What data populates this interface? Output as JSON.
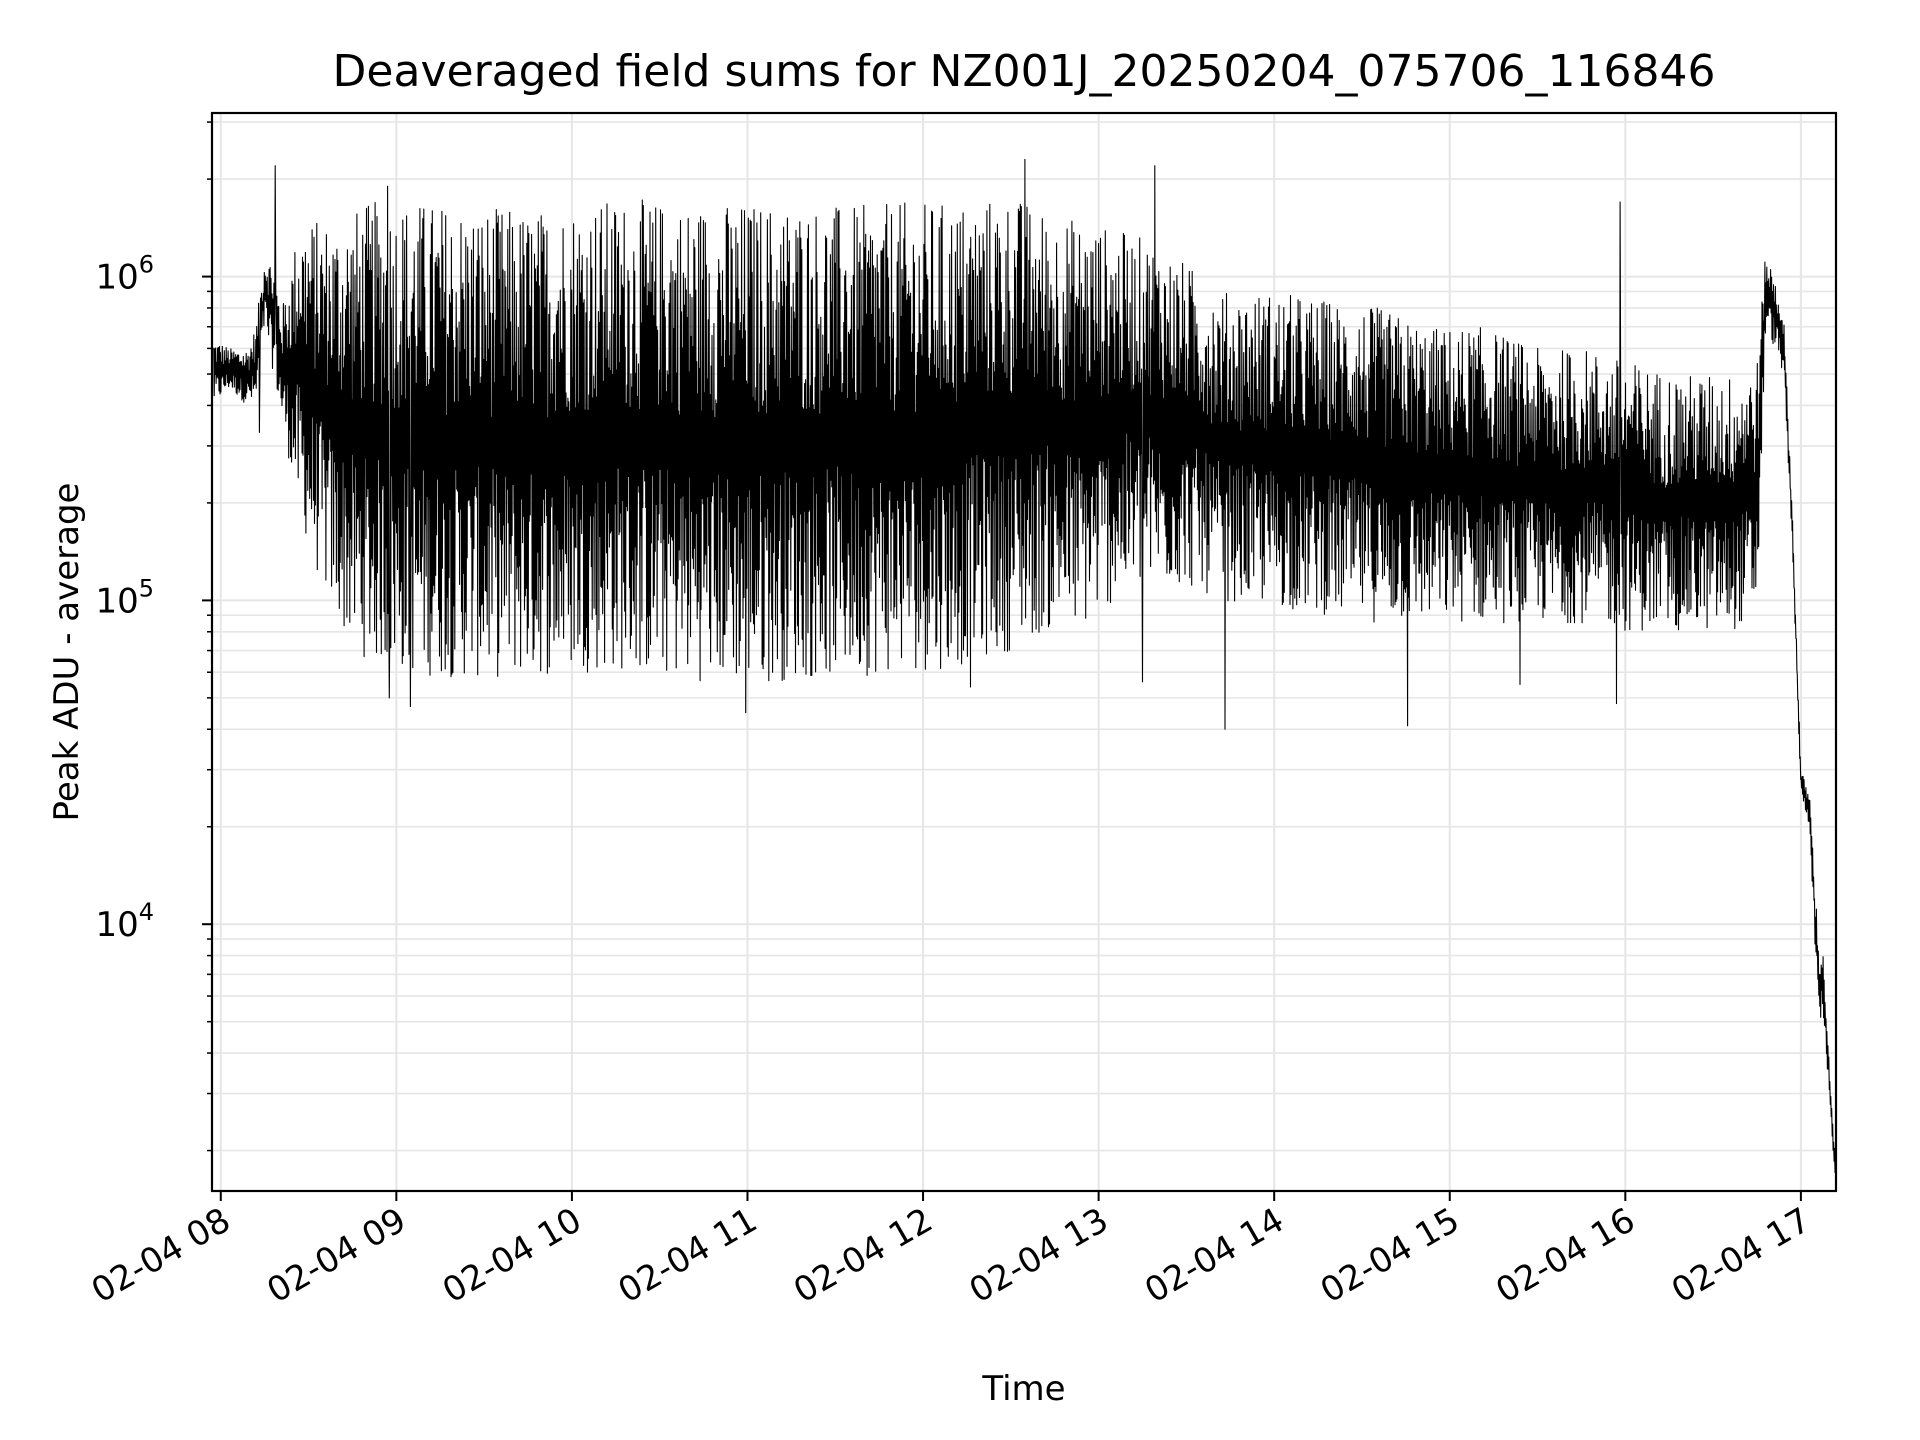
{
  "chart_data": {
    "type": "line",
    "title": "Deaveraged field sums for NZ001J_20250204_075706_116846",
    "xlabel": "Time",
    "ylabel": "Peak ADU - average",
    "yscale": "log",
    "xlim": [
      "02-04 07:57",
      "02-04 17:12"
    ],
    "ylim": [
      1500,
      3200000
    ],
    "grid": true,
    "line_color": "#000000",
    "x_ticks": [
      {
        "label": "02-04 08",
        "value": 8
      },
      {
        "label": "02-04 09",
        "value": 9
      },
      {
        "label": "02-04 10",
        "value": 10
      },
      {
        "label": "02-04 11",
        "value": 11
      },
      {
        "label": "02-04 12",
        "value": 12
      },
      {
        "label": "02-04 13",
        "value": 13
      },
      {
        "label": "02-04 14",
        "value": 14
      },
      {
        "label": "02-04 15",
        "value": 15
      },
      {
        "label": "02-04 16",
        "value": 16
      },
      {
        "label": "02-04 17",
        "value": 17
      }
    ],
    "y_ticks": [
      {
        "base": "10",
        "exp": "4",
        "value": 10000
      },
      {
        "base": "10",
        "exp": "5",
        "value": 100000
      },
      {
        "base": "10",
        "exp": "6",
        "value": 1000000
      }
    ],
    "envelope_hours": [
      7.96,
      8.05,
      8.15,
      8.2,
      8.25,
      8.3,
      8.35,
      8.45,
      8.55,
      8.65,
      8.75,
      8.85,
      9.0,
      9.2,
      9.5,
      9.8,
      10.0,
      10.3,
      10.6,
      11.0,
      11.3,
      11.6,
      11.9,
      12.2,
      12.5,
      12.7,
      12.9,
      13.1,
      13.3,
      13.5,
      13.7,
      14.0,
      14.3,
      14.6,
      14.9,
      15.2,
      15.5,
      15.8,
      16.0,
      16.3,
      16.6,
      16.75,
      16.8,
      16.85,
      16.9,
      16.95,
      17.0,
      17.05,
      17.1,
      17.13,
      17.17,
      17.2
    ],
    "envelope_high": [
      650000,
      600000,
      600000,
      700000,
      1200000,
      1100000,
      800000,
      1500000,
      1500000,
      1500000,
      1600000,
      1700000,
      1750000,
      1700000,
      1650000,
      1600000,
      1700000,
      1750000,
      1700000,
      1700000,
      1700000,
      1650000,
      1700000,
      1700000,
      1800000,
      1600000,
      1500000,
      1400000,
      1300000,
      1100000,
      900000,
      900000,
      850000,
      800000,
      700000,
      700000,
      600000,
      600000,
      550000,
      500000,
      500000,
      550000,
      1200000,
      1000000,
      800000,
      200000,
      30000,
      25000,
      9000,
      8000,
      3000,
      1800
    ],
    "envelope_low": [
      400000,
      450000,
      400000,
      400000,
      700000,
      500000,
      350000,
      180000,
      120000,
      90000,
      70000,
      65000,
      60000,
      58000,
      57000,
      58000,
      60000,
      60000,
      57000,
      55000,
      57000,
      58000,
      60000,
      62000,
      70000,
      80000,
      80000,
      100000,
      110000,
      110000,
      100000,
      95000,
      90000,
      85000,
      85000,
      85000,
      85000,
      85000,
      80000,
      80000,
      80000,
      90000,
      700000,
      600000,
      500000,
      150000,
      25000,
      20000,
      5000,
      5000,
      2500,
      1500
    ],
    "spikes": [
      {
        "x": 8.31,
        "y": 2200000
      },
      {
        "x": 8.22,
        "y": 330000
      },
      {
        "x": 8.95,
        "y": 1900000
      },
      {
        "x": 8.96,
        "y": 50000
      },
      {
        "x": 9.08,
        "y": 47000
      },
      {
        "x": 10.99,
        "y": 45000
      },
      {
        "x": 12.27,
        "y": 54000
      },
      {
        "x": 12.58,
        "y": 2300000
      },
      {
        "x": 13.32,
        "y": 2200000
      },
      {
        "x": 13.25,
        "y": 56000
      },
      {
        "x": 13.72,
        "y": 40000
      },
      {
        "x": 14.76,
        "y": 41000
      },
      {
        "x": 15.97,
        "y": 1700000
      },
      {
        "x": 15.95,
        "y": 48000
      },
      {
        "x": 15.4,
        "y": 55000
      }
    ]
  }
}
